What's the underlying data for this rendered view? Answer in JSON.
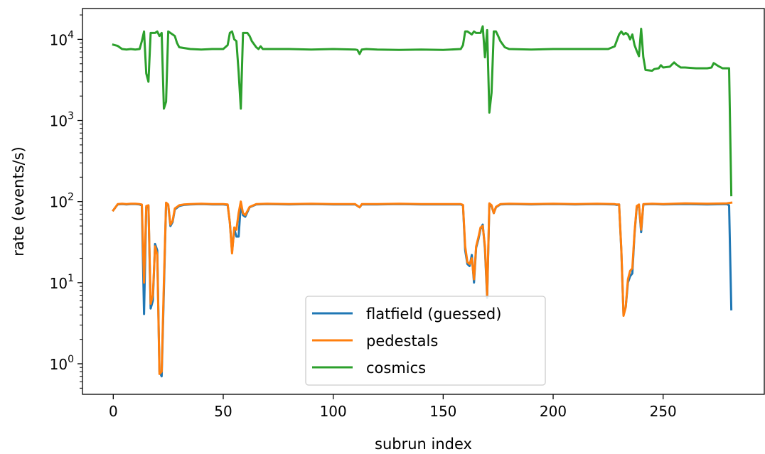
{
  "chart_data": {
    "type": "line",
    "title": "",
    "xlabel": "subrun index",
    "ylabel": "rate (events/s)",
    "yscale": "log",
    "xlim": [
      -14,
      296
    ],
    "ylim": [
      0.42,
      24000
    ],
    "xticks": [
      0,
      50,
      100,
      150,
      200,
      250
    ],
    "xtick_labels": [
      "0",
      "50",
      "100",
      "150",
      "200",
      "250"
    ],
    "yticks": [
      {
        "value": 1,
        "base": "10",
        "exp": "0"
      },
      {
        "value": 10,
        "base": "10",
        "exp": "1"
      },
      {
        "value": 100,
        "base": "10",
        "exp": "2"
      },
      {
        "value": 1000,
        "base": "10",
        "exp": "3"
      },
      {
        "value": 10000,
        "base": "10",
        "exp": "4"
      }
    ],
    "grid": false,
    "legend": {
      "position": "lower-center"
    },
    "series": [
      {
        "name": "flatfield (guessed)",
        "color": "#1f77b4",
        "points": [
          [
            0,
            78
          ],
          [
            1,
            85
          ],
          [
            2,
            92
          ],
          [
            4,
            93
          ],
          [
            6,
            92
          ],
          [
            8,
            93
          ],
          [
            10,
            93
          ],
          [
            12,
            92
          ],
          [
            13,
            90
          ],
          [
            14,
            4.1
          ],
          [
            15,
            85
          ],
          [
            16,
            88
          ],
          [
            17,
            4.8
          ],
          [
            18,
            6
          ],
          [
            19,
            30
          ],
          [
            20,
            25
          ],
          [
            21,
            0.8
          ],
          [
            22,
            0.7
          ],
          [
            23,
            8
          ],
          [
            24,
            95
          ],
          [
            25,
            90
          ],
          [
            26,
            50
          ],
          [
            27,
            56
          ],
          [
            28,
            80
          ],
          [
            30,
            88
          ],
          [
            32,
            91
          ],
          [
            35,
            92
          ],
          [
            40,
            93
          ],
          [
            45,
            92
          ],
          [
            50,
            92
          ],
          [
            52,
            91
          ],
          [
            53,
            55
          ],
          [
            54,
            24
          ],
          [
            55,
            46
          ],
          [
            56,
            37
          ],
          [
            57,
            37
          ],
          [
            58,
            92
          ],
          [
            59,
            68
          ],
          [
            60,
            65
          ],
          [
            62,
            85
          ],
          [
            65,
            92
          ],
          [
            70,
            93
          ],
          [
            80,
            92
          ],
          [
            90,
            93
          ],
          [
            100,
            92
          ],
          [
            110,
            92
          ],
          [
            112,
            85
          ],
          [
            113,
            92
          ],
          [
            120,
            92
          ],
          [
            130,
            93
          ],
          [
            140,
            92
          ],
          [
            150,
            92
          ],
          [
            158,
            92
          ],
          [
            159,
            90
          ],
          [
            160,
            25
          ],
          [
            161,
            17
          ],
          [
            162,
            16
          ],
          [
            163,
            22
          ],
          [
            164,
            10
          ],
          [
            165,
            27
          ],
          [
            166,
            34
          ],
          [
            167,
            46
          ],
          [
            168,
            52
          ],
          [
            169,
            26
          ],
          [
            170,
            6.5
          ],
          [
            171,
            92
          ],
          [
            172,
            88
          ],
          [
            173,
            72
          ],
          [
            174,
            85
          ],
          [
            176,
            92
          ],
          [
            180,
            93
          ],
          [
            190,
            92
          ],
          [
            200,
            93
          ],
          [
            210,
            92
          ],
          [
            220,
            93
          ],
          [
            228,
            92
          ],
          [
            229,
            91
          ],
          [
            230,
            92
          ],
          [
            231,
            25
          ],
          [
            232,
            4
          ],
          [
            233,
            5
          ],
          [
            234,
            10
          ],
          [
            235,
            12
          ],
          [
            236,
            13
          ],
          [
            237,
            40
          ],
          [
            238,
            85
          ],
          [
            239,
            90
          ],
          [
            240,
            42
          ],
          [
            241,
            92
          ],
          [
            245,
            93
          ],
          [
            250,
            92
          ],
          [
            260,
            93
          ],
          [
            270,
            92
          ],
          [
            279,
            93
          ],
          [
            280,
            90
          ],
          [
            281,
            4.7
          ]
        ]
      },
      {
        "name": "pedestals",
        "color": "#ff7f0e",
        "points": [
          [
            0,
            78
          ],
          [
            1,
            85
          ],
          [
            2,
            93
          ],
          [
            4,
            94
          ],
          [
            6,
            93
          ],
          [
            8,
            94
          ],
          [
            10,
            94
          ],
          [
            12,
            93
          ],
          [
            13,
            92
          ],
          [
            14,
            10
          ],
          [
            15,
            88
          ],
          [
            16,
            90
          ],
          [
            17,
            5.5
          ],
          [
            18,
            7
          ],
          [
            19,
            28
          ],
          [
            20,
            22
          ],
          [
            21,
            0.75
          ],
          [
            22,
            0.8
          ],
          [
            23,
            10
          ],
          [
            24,
            97
          ],
          [
            25,
            92
          ],
          [
            26,
            52
          ],
          [
            27,
            58
          ],
          [
            28,
            82
          ],
          [
            30,
            90
          ],
          [
            32,
            92
          ],
          [
            35,
            93
          ],
          [
            40,
            94
          ],
          [
            45,
            93
          ],
          [
            50,
            93
          ],
          [
            52,
            92
          ],
          [
            53,
            55
          ],
          [
            54,
            23
          ],
          [
            55,
            48
          ],
          [
            56,
            45
          ],
          [
            57,
            72
          ],
          [
            58,
            100
          ],
          [
            59,
            72
          ],
          [
            60,
            68
          ],
          [
            62,
            86
          ],
          [
            65,
            93
          ],
          [
            70,
            94
          ],
          [
            80,
            93
          ],
          [
            90,
            94
          ],
          [
            100,
            93
          ],
          [
            110,
            93
          ],
          [
            112,
            85
          ],
          [
            113,
            93
          ],
          [
            120,
            93
          ],
          [
            130,
            94
          ],
          [
            140,
            93
          ],
          [
            150,
            93
          ],
          [
            158,
            93
          ],
          [
            159,
            91
          ],
          [
            160,
            28
          ],
          [
            161,
            18
          ],
          [
            162,
            17
          ],
          [
            163,
            20
          ],
          [
            164,
            11
          ],
          [
            165,
            28
          ],
          [
            166,
            36
          ],
          [
            167,
            48
          ],
          [
            168,
            50
          ],
          [
            169,
            28
          ],
          [
            170,
            7
          ],
          [
            171,
            95
          ],
          [
            172,
            90
          ],
          [
            173,
            72
          ],
          [
            174,
            86
          ],
          [
            176,
            93
          ],
          [
            180,
            94
          ],
          [
            190,
            93
          ],
          [
            200,
            94
          ],
          [
            210,
            93
          ],
          [
            220,
            94
          ],
          [
            228,
            93
          ],
          [
            229,
            92
          ],
          [
            230,
            92
          ],
          [
            231,
            26
          ],
          [
            232,
            3.9
          ],
          [
            233,
            5
          ],
          [
            234,
            11
          ],
          [
            235,
            14
          ],
          [
            236,
            15
          ],
          [
            237,
            42
          ],
          [
            238,
            88
          ],
          [
            239,
            92
          ],
          [
            240,
            45
          ],
          [
            241,
            93
          ],
          [
            245,
            94
          ],
          [
            250,
            93
          ],
          [
            260,
            95
          ],
          [
            270,
            94
          ],
          [
            279,
            95
          ],
          [
            280,
            96
          ],
          [
            281,
            97
          ]
        ]
      },
      {
        "name": "cosmics",
        "color": "#2ca02c",
        "points": [
          [
            0,
            8600
          ],
          [
            2,
            8300
          ],
          [
            4,
            7600
          ],
          [
            6,
            7500
          ],
          [
            8,
            7600
          ],
          [
            10,
            7500
          ],
          [
            12,
            7600
          ],
          [
            13,
            9500
          ],
          [
            14,
            12500
          ],
          [
            15,
            3800
          ],
          [
            16,
            3000
          ],
          [
            17,
            12000
          ],
          [
            18,
            12000
          ],
          [
            19,
            12000
          ],
          [
            20,
            12500
          ],
          [
            21,
            11000
          ],
          [
            22,
            12000
          ],
          [
            23,
            1400
          ],
          [
            24,
            1700
          ],
          [
            25,
            12500
          ],
          [
            26,
            12000
          ],
          [
            27,
            11500
          ],
          [
            28,
            11000
          ],
          [
            29,
            9000
          ],
          [
            30,
            8000
          ],
          [
            35,
            7600
          ],
          [
            40,
            7500
          ],
          [
            45,
            7600
          ],
          [
            50,
            7600
          ],
          [
            52,
            8500
          ],
          [
            53,
            12000
          ],
          [
            54,
            12500
          ],
          [
            55,
            10000
          ],
          [
            56,
            9500
          ],
          [
            57,
            4000
          ],
          [
            58,
            1400
          ],
          [
            59,
            12000
          ],
          [
            60,
            12000
          ],
          [
            61,
            12000
          ],
          [
            62,
            11000
          ],
          [
            63,
            9500
          ],
          [
            65,
            8000
          ],
          [
            66,
            7600
          ],
          [
            67,
            8200
          ],
          [
            68,
            7600
          ],
          [
            70,
            7600
          ],
          [
            80,
            7600
          ],
          [
            90,
            7500
          ],
          [
            100,
            7600
          ],
          [
            110,
            7500
          ],
          [
            111,
            7400
          ],
          [
            112,
            6600
          ],
          [
            113,
            7500
          ],
          [
            115,
            7600
          ],
          [
            120,
            7500
          ],
          [
            130,
            7400
          ],
          [
            140,
            7500
          ],
          [
            150,
            7400
          ],
          [
            158,
            7600
          ],
          [
            159,
            8500
          ],
          [
            160,
            12500
          ],
          [
            161,
            12500
          ],
          [
            162,
            12000
          ],
          [
            163,
            11500
          ],
          [
            164,
            12500
          ],
          [
            165,
            12000
          ],
          [
            166,
            12000
          ],
          [
            167,
            12000
          ],
          [
            168,
            14500
          ],
          [
            169,
            6000
          ],
          [
            170,
            13000
          ],
          [
            171,
            1250
          ],
          [
            172,
            2200
          ],
          [
            173,
            12500
          ],
          [
            174,
            12500
          ],
          [
            175,
            11000
          ],
          [
            176,
            9500
          ],
          [
            178,
            8000
          ],
          [
            180,
            7600
          ],
          [
            190,
            7500
          ],
          [
            200,
            7600
          ],
          [
            210,
            7600
          ],
          [
            220,
            7600
          ],
          [
            225,
            7600
          ],
          [
            228,
            8200
          ],
          [
            230,
            11500
          ],
          [
            231,
            12500
          ],
          [
            232,
            11500
          ],
          [
            233,
            12000
          ],
          [
            234,
            11500
          ],
          [
            235,
            10000
          ],
          [
            236,
            11500
          ],
          [
            237,
            8500
          ],
          [
            238,
            7200
          ],
          [
            239,
            6200
          ],
          [
            240,
            13500
          ],
          [
            241,
            6000
          ],
          [
            242,
            4200
          ],
          [
            245,
            4100
          ],
          [
            246,
            4300
          ],
          [
            248,
            4400
          ],
          [
            249,
            4800
          ],
          [
            250,
            4500
          ],
          [
            253,
            4600
          ],
          [
            255,
            5200
          ],
          [
            256,
            4900
          ],
          [
            258,
            4500
          ],
          [
            260,
            4500
          ],
          [
            265,
            4400
          ],
          [
            270,
            4400
          ],
          [
            272,
            4500
          ],
          [
            273,
            5100
          ],
          [
            275,
            4700
          ],
          [
            277,
            4400
          ],
          [
            280,
            4400
          ],
          [
            281,
            120
          ]
        ]
      }
    ]
  }
}
